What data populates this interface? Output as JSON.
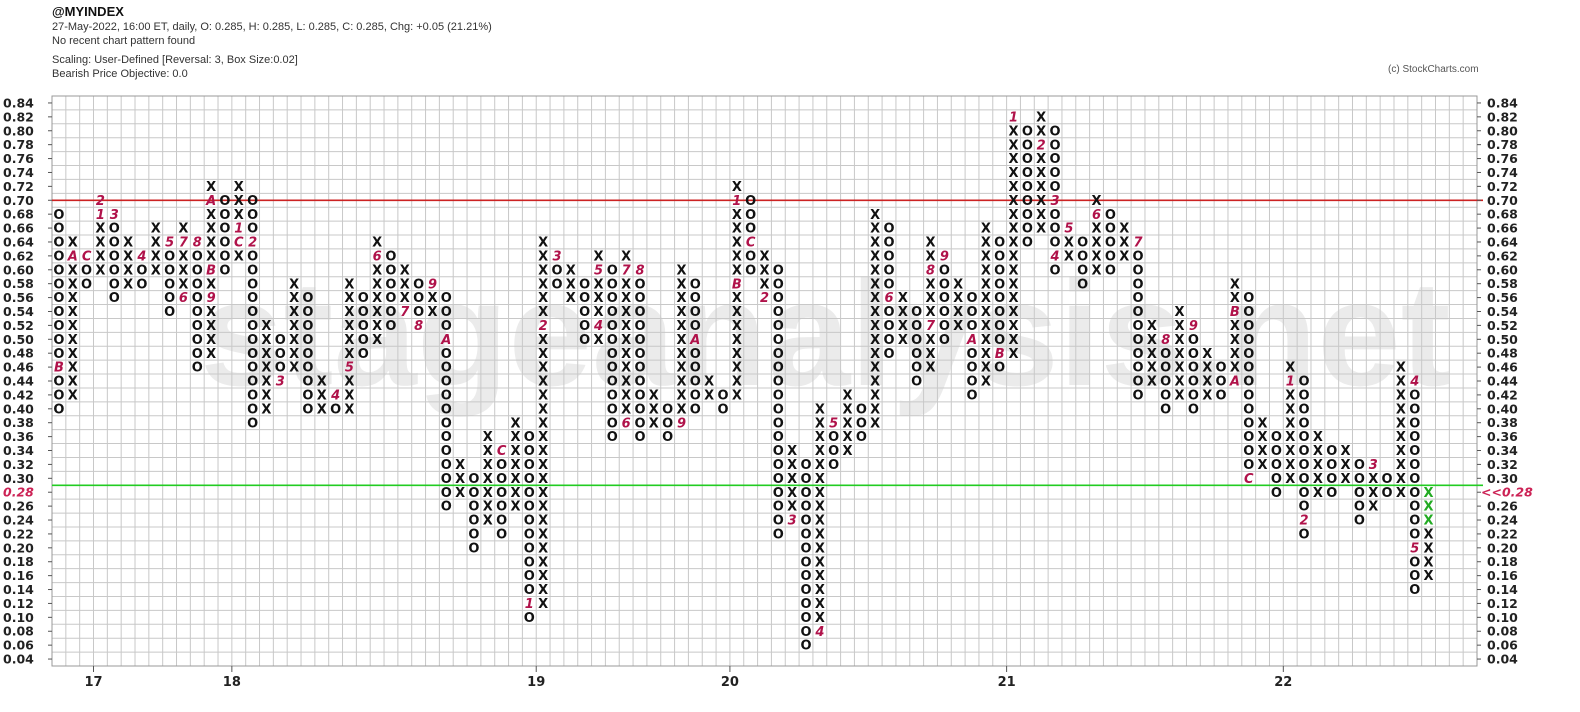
{
  "header": {
    "symbol": "@MYINDEX",
    "quote_line": "27-May-2022, 16:00 ET, daily, O: 0.285, H: 0.285, L: 0.285, C: 0.285, Chg: +0.05 (21.21%)",
    "pattern_line": "No recent chart pattern found",
    "scaling_line": "Scaling: User-Defined [Reversal: 3, Box Size:0.02]",
    "objective_line": "Bearish Price Objective: 0.0"
  },
  "copyright": "(c) StockCharts.com",
  "watermark": "stageanalysis.net",
  "colors": {
    "x_mark": "#111111",
    "o_mark": "#111111",
    "month_marker": "#b0124a",
    "recent_x": "#22aa22",
    "resistance": "#cc2222",
    "support": "#22cc22",
    "current_price": "#cc2255",
    "grid": "#c8c8c8",
    "watermark": "#ebebeb"
  },
  "chart_data": {
    "type": "point-and-figure",
    "box_size": 0.02,
    "reversal": 3,
    "ylim": [
      0.04,
      0.84
    ],
    "yticks": [
      "0.84",
      "0.82",
      "0.80",
      "0.78",
      "0.76",
      "0.74",
      "0.72",
      "0.70",
      "0.68",
      "0.66",
      "0.64",
      "0.62",
      "0.60",
      "0.58",
      "0.56",
      "0.54",
      "0.52",
      "0.50",
      "0.48",
      "0.46",
      "0.44",
      "0.42",
      "0.40",
      "0.38",
      "0.36",
      "0.34",
      "0.32",
      "0.30",
      "0.28",
      "0.26",
      "0.24",
      "0.22",
      "0.20",
      "0.18",
      "0.16",
      "0.14",
      "0.12",
      "0.10",
      "0.08",
      "0.06",
      "0.04"
    ],
    "current_price_label": "0.28",
    "current_price_marker_right": "<<0.28",
    "resistance_level": 0.7,
    "support_level": 0.29,
    "year_labels": [
      {
        "label": "17",
        "column": 3
      },
      {
        "label": "18",
        "column": 13
      },
      {
        "label": "19",
        "column": 35
      },
      {
        "label": "20",
        "column": 49
      },
      {
        "label": "21",
        "column": 69
      },
      {
        "label": "22",
        "column": 89
      }
    ],
    "columns": [
      {
        "t": "O",
        "hi": 0.68,
        "lo": 0.4,
        "m": {
          "0.46": "B"
        }
      },
      {
        "t": "X",
        "hi": 0.64,
        "lo": 0.42,
        "m": {
          "0.62": "A"
        }
      },
      {
        "t": "O",
        "hi": 0.62,
        "lo": 0.58,
        "m": {
          "0.62": "C"
        }
      },
      {
        "t": "X",
        "hi": 0.7,
        "lo": 0.6,
        "m": {
          "0.70": "2",
          "0.68": "1"
        }
      },
      {
        "t": "O",
        "hi": 0.68,
        "lo": 0.56,
        "m": {
          "0.68": "3"
        }
      },
      {
        "t": "X",
        "hi": 0.64,
        "lo": 0.58,
        "m": {}
      },
      {
        "t": "O",
        "hi": 0.62,
        "lo": 0.58,
        "m": {
          "0.62": "4"
        }
      },
      {
        "t": "X",
        "hi": 0.66,
        "lo": 0.6,
        "m": {}
      },
      {
        "t": "O",
        "hi": 0.64,
        "lo": 0.54,
        "m": {
          "0.64": "5"
        }
      },
      {
        "t": "X",
        "hi": 0.66,
        "lo": 0.56,
        "m": {
          "0.64": "7",
          "0.56": "6"
        }
      },
      {
        "t": "O",
        "hi": 0.64,
        "lo": 0.46,
        "m": {
          "0.64": "8"
        }
      },
      {
        "t": "X",
        "hi": 0.72,
        "lo": 0.48,
        "m": {
          "0.70": "A",
          "0.60": "B",
          "0.56": "9"
        }
      },
      {
        "t": "O",
        "hi": 0.7,
        "lo": 0.6,
        "m": {}
      },
      {
        "t": "X",
        "hi": 0.72,
        "lo": 0.62,
        "m": {
          "0.66": "1",
          "0.64": "C"
        }
      },
      {
        "t": "O",
        "hi": 0.7,
        "lo": 0.38,
        "m": {
          "0.64": "2"
        }
      },
      {
        "t": "X",
        "hi": 0.52,
        "lo": 0.4,
        "m": {}
      },
      {
        "t": "O",
        "hi": 0.5,
        "lo": 0.44,
        "m": {
          "0.44": "3"
        }
      },
      {
        "t": "X",
        "hi": 0.58,
        "lo": 0.46,
        "m": {}
      },
      {
        "t": "O",
        "hi": 0.56,
        "lo": 0.4,
        "m": {}
      },
      {
        "t": "X",
        "hi": 0.44,
        "lo": 0.4,
        "m": {}
      },
      {
        "t": "O",
        "hi": 0.42,
        "lo": 0.4,
        "m": {
          "0.42": "4"
        }
      },
      {
        "t": "X",
        "hi": 0.58,
        "lo": 0.4,
        "m": {
          "0.46": "5"
        }
      },
      {
        "t": "O",
        "hi": 0.56,
        "lo": 0.48,
        "m": {}
      },
      {
        "t": "X",
        "hi": 0.64,
        "lo": 0.5,
        "m": {
          "0.62": "6"
        }
      },
      {
        "t": "O",
        "hi": 0.62,
        "lo": 0.52,
        "m": {}
      },
      {
        "t": "X",
        "hi": 0.6,
        "lo": 0.54,
        "m": {
          "0.54": "7"
        }
      },
      {
        "t": "O",
        "hi": 0.58,
        "lo": 0.52,
        "m": {
          "0.52": "8"
        }
      },
      {
        "t": "X",
        "hi": 0.58,
        "lo": 0.54,
        "m": {
          "0.58": "9"
        }
      },
      {
        "t": "O",
        "hi": 0.56,
        "lo": 0.26,
        "m": {
          "0.50": "A"
        }
      },
      {
        "t": "X",
        "hi": 0.32,
        "lo": 0.28,
        "m": {}
      },
      {
        "t": "O",
        "hi": 0.3,
        "lo": 0.2,
        "m": {}
      },
      {
        "t": "X",
        "hi": 0.36,
        "lo": 0.24,
        "m": {
          "0.22": "B"
        }
      },
      {
        "t": "O",
        "hi": 0.34,
        "lo": 0.22,
        "m": {
          "0.34": "C"
        }
      },
      {
        "t": "X",
        "hi": 0.38,
        "lo": 0.26,
        "m": {}
      },
      {
        "t": "O",
        "hi": 0.36,
        "lo": 0.1,
        "m": {
          "0.12": "1"
        }
      },
      {
        "t": "X",
        "hi": 0.64,
        "lo": 0.12,
        "m": {
          "0.52": "2"
        }
      },
      {
        "t": "O",
        "hi": 0.62,
        "lo": 0.58,
        "m": {
          "0.62": "3"
        }
      },
      {
        "t": "X",
        "hi": 0.6,
        "lo": 0.56,
        "m": {}
      },
      {
        "t": "O",
        "hi": 0.58,
        "lo": 0.5,
        "m": {}
      },
      {
        "t": "X",
        "hi": 0.62,
        "lo": 0.5,
        "m": {
          "0.60": "5",
          "0.52": "4"
        }
      },
      {
        "t": "O",
        "hi": 0.6,
        "lo": 0.36,
        "m": {}
      },
      {
        "t": "X",
        "hi": 0.62,
        "lo": 0.38,
        "m": {
          "0.60": "7",
          "0.38": "6"
        }
      },
      {
        "t": "O",
        "hi": 0.6,
        "lo": 0.36,
        "m": {
          "0.60": "8"
        }
      },
      {
        "t": "X",
        "hi": 0.42,
        "lo": 0.38,
        "m": {}
      },
      {
        "t": "O",
        "hi": 0.4,
        "lo": 0.36,
        "m": {}
      },
      {
        "t": "X",
        "hi": 0.6,
        "lo": 0.38,
        "m": {
          "0.38": "9"
        }
      },
      {
        "t": "O",
        "hi": 0.58,
        "lo": 0.4,
        "m": {
          "0.50": "A"
        }
      },
      {
        "t": "X",
        "hi": 0.44,
        "lo": 0.42,
        "m": {}
      },
      {
        "t": "O",
        "hi": 0.42,
        "lo": 0.4,
        "m": {}
      },
      {
        "t": "X",
        "hi": 0.72,
        "lo": 0.42,
        "m": {
          "0.70": "1",
          "0.58": "B"
        }
      },
      {
        "t": "O",
        "hi": 0.7,
        "lo": 0.6,
        "m": {
          "0.64": "C"
        }
      },
      {
        "t": "X",
        "hi": 0.62,
        "lo": 0.56,
        "m": {
          "0.56": "2"
        }
      },
      {
        "t": "O",
        "hi": 0.6,
        "lo": 0.22,
        "m": {}
      },
      {
        "t": "X",
        "hi": 0.34,
        "lo": 0.24,
        "m": {
          "0.24": "3"
        }
      },
      {
        "t": "O",
        "hi": 0.32,
        "lo": 0.06,
        "m": {}
      },
      {
        "t": "X",
        "hi": 0.4,
        "lo": 0.08,
        "m": {
          "0.08": "4"
        }
      },
      {
        "t": "O",
        "hi": 0.38,
        "lo": 0.32,
        "m": {
          "0.38": "5"
        }
      },
      {
        "t": "X",
        "hi": 0.42,
        "lo": 0.34,
        "m": {}
      },
      {
        "t": "O",
        "hi": 0.4,
        "lo": 0.36,
        "m": {}
      },
      {
        "t": "X",
        "hi": 0.68,
        "lo": 0.38,
        "m": {}
      },
      {
        "t": "O",
        "hi": 0.66,
        "lo": 0.48,
        "m": {
          "0.56": "6"
        }
      },
      {
        "t": "X",
        "hi": 0.56,
        "lo": 0.5,
        "m": {}
      },
      {
        "t": "O",
        "hi": 0.54,
        "lo": 0.44,
        "m": {}
      },
      {
        "t": "X",
        "hi": 0.64,
        "lo": 0.46,
        "m": {
          "0.60": "8",
          "0.52": "7"
        }
      },
      {
        "t": "O",
        "hi": 0.62,
        "lo": 0.5,
        "m": {
          "0.62": "9"
        }
      },
      {
        "t": "X",
        "hi": 0.58,
        "lo": 0.52,
        "m": {}
      },
      {
        "t": "O",
        "hi": 0.56,
        "lo": 0.42,
        "m": {
          "0.50": "A"
        }
      },
      {
        "t": "X",
        "hi": 0.66,
        "lo": 0.44,
        "m": {}
      },
      {
        "t": "O",
        "hi": 0.64,
        "lo": 0.46,
        "m": {
          "0.48": "B"
        }
      },
      {
        "t": "X",
        "hi": 0.82,
        "lo": 0.48,
        "m": {
          "0.82": "1"
        }
      },
      {
        "t": "O",
        "hi": 0.8,
        "lo": 0.64,
        "m": {}
      },
      {
        "t": "X",
        "hi": 0.82,
        "lo": 0.66,
        "m": {
          "0.78": "2"
        }
      },
      {
        "t": "O",
        "hi": 0.8,
        "lo": 0.6,
        "m": {
          "0.70": "3",
          "0.62": "4"
        }
      },
      {
        "t": "X",
        "hi": 0.66,
        "lo": 0.62,
        "m": {
          "0.66": "5"
        }
      },
      {
        "t": "O",
        "hi": 0.64,
        "lo": 0.58,
        "m": {}
      },
      {
        "t": "X",
        "hi": 0.7,
        "lo": 0.6,
        "m": {
          "0.68": "6"
        }
      },
      {
        "t": "O",
        "hi": 0.68,
        "lo": 0.6,
        "m": {}
      },
      {
        "t": "X",
        "hi": 0.66,
        "lo": 0.62,
        "m": {}
      },
      {
        "t": "O",
        "hi": 0.64,
        "lo": 0.42,
        "m": {
          "0.64": "7"
        }
      },
      {
        "t": "X",
        "hi": 0.52,
        "lo": 0.44,
        "m": {}
      },
      {
        "t": "O",
        "hi": 0.5,
        "lo": 0.4,
        "m": {
          "0.50": "8"
        }
      },
      {
        "t": "X",
        "hi": 0.54,
        "lo": 0.42,
        "m": {}
      },
      {
        "t": "O",
        "hi": 0.52,
        "lo": 0.4,
        "m": {
          "0.52": "9"
        }
      },
      {
        "t": "X",
        "hi": 0.48,
        "lo": 0.42,
        "m": {}
      },
      {
        "t": "O",
        "hi": 0.46,
        "lo": 0.42,
        "m": {}
      },
      {
        "t": "X",
        "hi": 0.58,
        "lo": 0.44,
        "m": {
          "0.54": "B",
          "0.44": "A"
        }
      },
      {
        "t": "O",
        "hi": 0.56,
        "lo": 0.3,
        "m": {
          "0.30": "C"
        }
      },
      {
        "t": "X",
        "hi": 0.38,
        "lo": 0.32,
        "m": {}
      },
      {
        "t": "O",
        "hi": 0.36,
        "lo": 0.28,
        "m": {}
      },
      {
        "t": "X",
        "hi": 0.46,
        "lo": 0.3,
        "m": {
          "0.44": "1"
        }
      },
      {
        "t": "O",
        "hi": 0.44,
        "lo": 0.22,
        "m": {
          "0.24": "2"
        }
      },
      {
        "t": "X",
        "hi": 0.36,
        "lo": 0.28,
        "m": {}
      },
      {
        "t": "O",
        "hi": 0.34,
        "lo": 0.28,
        "m": {}
      },
      {
        "t": "X",
        "hi": 0.34,
        "lo": 0.3,
        "m": {}
      },
      {
        "t": "O",
        "hi": 0.32,
        "lo": 0.24,
        "m": {}
      },
      {
        "t": "X",
        "hi": 0.32,
        "lo": 0.26,
        "m": {
          "0.32": "3"
        }
      },
      {
        "t": "O",
        "hi": 0.3,
        "lo": 0.28,
        "m": {}
      },
      {
        "t": "X",
        "hi": 0.46,
        "lo": 0.28,
        "m": {}
      },
      {
        "t": "O",
        "hi": 0.44,
        "lo": 0.14,
        "m": {
          "0.44": "4",
          "0.20": "5"
        }
      },
      {
        "t": "X",
        "hi": 0.28,
        "lo": 0.16,
        "m": {},
        "recent": 3
      }
    ]
  }
}
